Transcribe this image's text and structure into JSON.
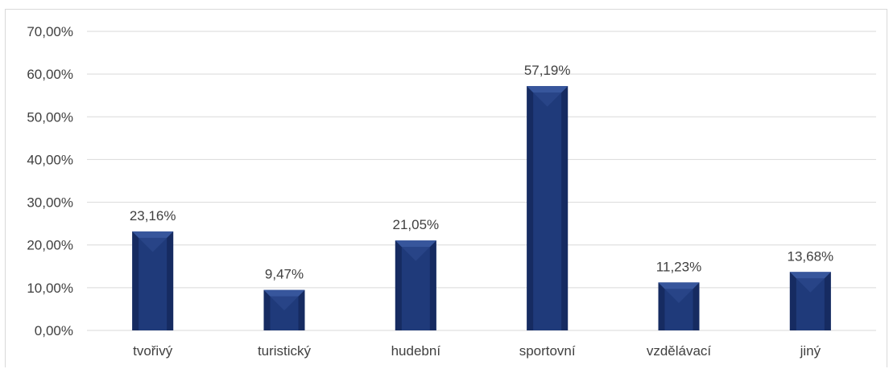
{
  "chart_data": {
    "type": "bar",
    "categories": [
      "tvořivý",
      "turistický",
      "hudební",
      "sportovní",
      "vzdělávací",
      "jiný"
    ],
    "values": [
      23.16,
      9.47,
      21.05,
      57.19,
      11.23,
      13.68
    ],
    "data_labels": [
      "23,16%",
      "9,47%",
      "21,05%",
      "57,19%",
      "11,23%",
      "13,68%"
    ],
    "y_ticks": [
      "0,00%",
      "10,00%",
      "20,00%",
      "30,00%",
      "40,00%",
      "50,00%",
      "60,00%",
      "70,00%"
    ],
    "ylim": [
      0,
      70
    ],
    "title": "",
    "xlabel": "",
    "ylabel": "",
    "grid": true,
    "legend": "none",
    "colors": {
      "bar": "#1f3a7a",
      "bar_dark": "#0f1f4d",
      "bar_light": "#3a5aa0",
      "grid": "#d9d9d9",
      "text": "#404040"
    }
  }
}
